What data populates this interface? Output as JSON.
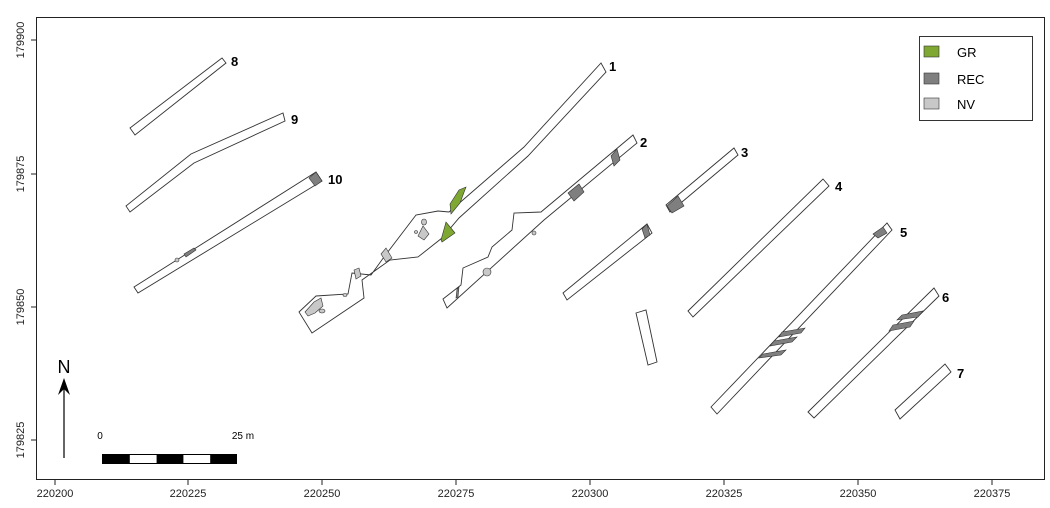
{
  "map": {
    "x_ticks": [
      "220200",
      "220225",
      "220250",
      "220275",
      "220300",
      "220325",
      "220350",
      "220375"
    ],
    "y_ticks": [
      "179900",
      "179875",
      "179850",
      "179825"
    ],
    "x_range": [
      220193,
      220389
    ],
    "y_range": [
      179908,
      179813
    ],
    "north_label": "N",
    "scale_bar": {
      "start_label": "0",
      "end_label": "25 m"
    },
    "legend": [
      {
        "label": "GR",
        "color": "#7fa832"
      },
      {
        "label": "REC",
        "color": "#7f7f7f"
      },
      {
        "label": "NV",
        "color": "#c8c8c8"
      }
    ],
    "trench_labels": [
      "1",
      "2",
      "3",
      "4",
      "5",
      "6",
      "7",
      "8",
      "9",
      "10"
    ]
  }
}
